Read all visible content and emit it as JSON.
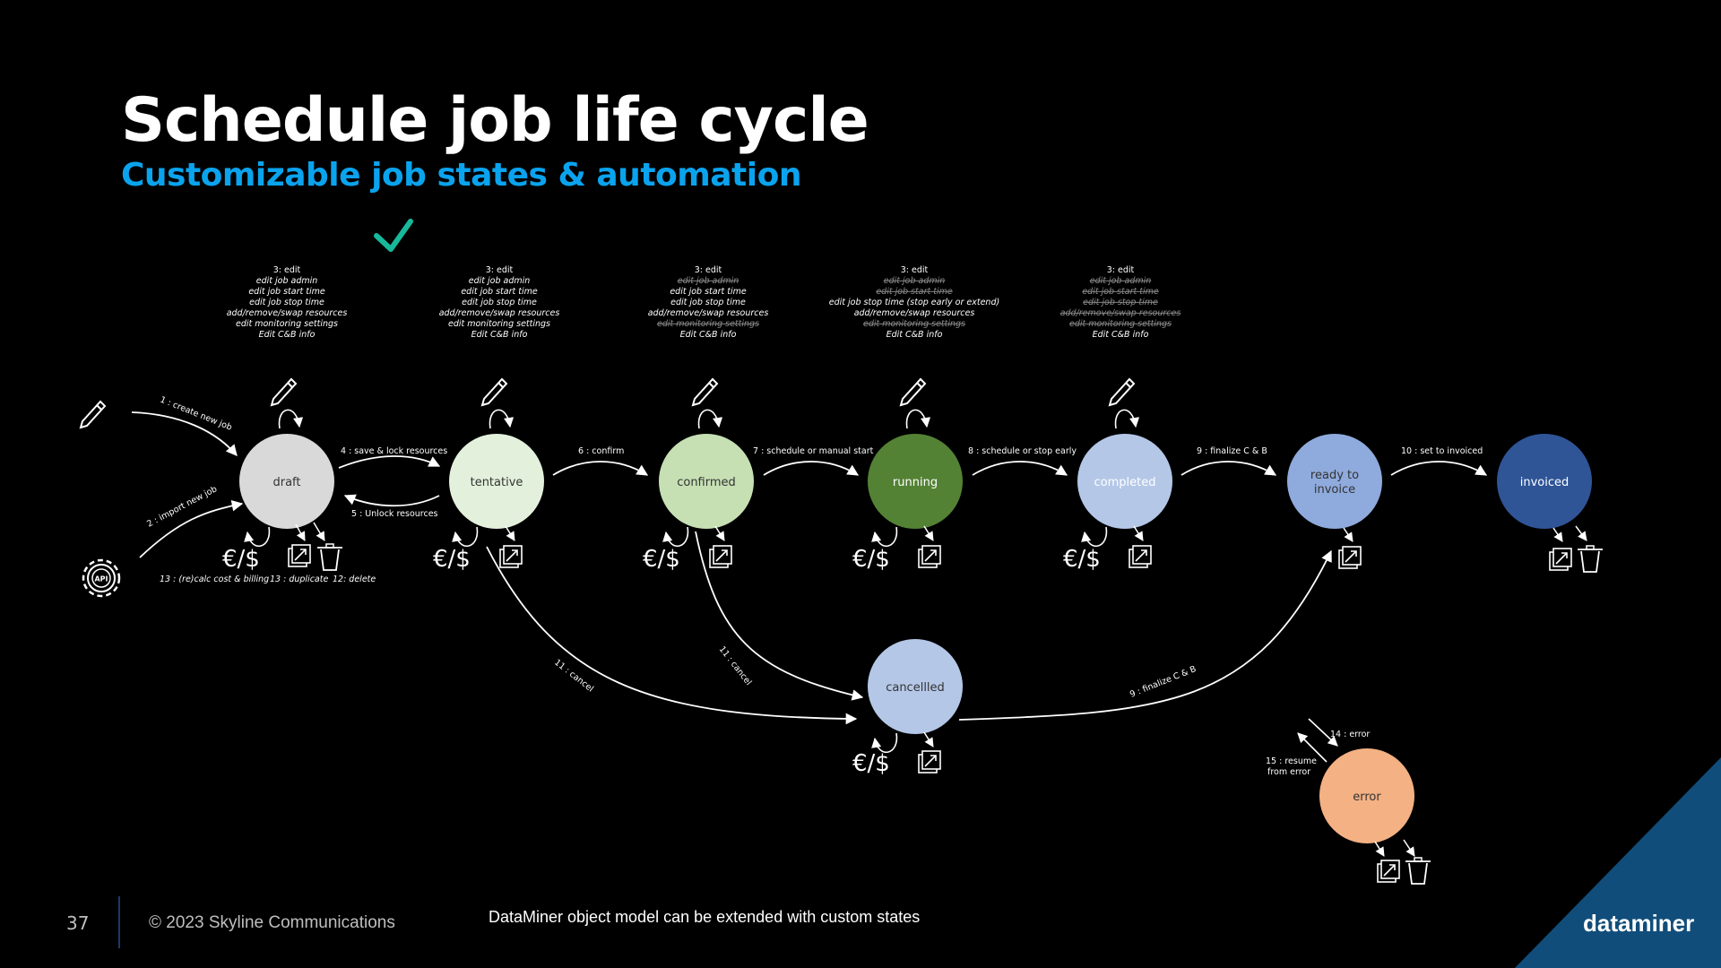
{
  "title": "Schedule job life cycle",
  "subtitle": "Customizable job states & automation",
  "footer": {
    "page_number": "37",
    "copyright": "© 2023 Skyline Communications",
    "note": "DataMiner object model can be extended with custom states",
    "brand": "dataminer"
  },
  "colors": {
    "background": "#000000",
    "title": "#ffffff",
    "subtitle": "#0aa3ee",
    "check": "#18b89a",
    "corner": "#114d7a"
  },
  "icons": [
    "pencil-icon",
    "api-gear-icon",
    "checkmark-icon",
    "currency-icon",
    "duplicate-icon",
    "trash-icon"
  ],
  "currency_label": "€/$",
  "states": {
    "draft": {
      "label": "draft",
      "color": "#d9d9d9",
      "text_color": "#333333"
    },
    "tentative": {
      "label": "tentative",
      "color": "#e3f1dc",
      "text_color": "#333333"
    },
    "confirmed": {
      "label": "confirmed",
      "color": "#c6e0b4",
      "text_color": "#333333"
    },
    "running": {
      "label": "running",
      "color": "#548235",
      "text_color": "#ffffff"
    },
    "completed": {
      "label": "completed",
      "color": "#b4c7e7",
      "text_color": "#ffffff"
    },
    "ready": {
      "label_line1": "ready to",
      "label_line2": "invoice",
      "color": "#8faadc",
      "text_color": "#333333"
    },
    "invoiced": {
      "label": "invoiced",
      "color": "#2f5597",
      "text_color": "#ffffff"
    },
    "cancelled": {
      "label": "cancellled",
      "color": "#b4c7e7",
      "text_color": "#333333"
    },
    "error": {
      "label": "error",
      "color": "#f4b183",
      "text_color": "#333333"
    }
  },
  "captions": {
    "draft": [
      "3:  edit",
      "edit job admin",
      "edit job start time",
      "edit job stop time",
      "add/remove/swap resources",
      "edit monitoring settings",
      "Edit C&B info"
    ],
    "tentative": [
      "3:  edit",
      "edit job admin",
      "edit job start time",
      "edit job stop time",
      "add/remove/swap resources",
      "edit monitoring settings",
      "Edit C&B info"
    ],
    "confirmed": [
      "3:  edit",
      "edit job admin",
      "edit job start time",
      "edit job stop time",
      "add/remove/swap resources",
      "edit monitoring settings",
      "Edit C&B info"
    ],
    "running": [
      "3:  edit",
      "edit job admin",
      "edit job start time",
      "edit job stop time (stop early or extend)",
      "add/remove/swap resources",
      "edit monitoring settings",
      "Edit C&B info"
    ],
    "completed": [
      "3:  edit",
      "edit job admin",
      "edit job start time",
      "edit job stop time",
      "add/remove/swap resources",
      "edit monitoring settings",
      "Edit C&B info"
    ]
  },
  "edges": {
    "create": "1 : create new job",
    "import": "2 : import new job",
    "save_lock": "4 : save & lock resources",
    "unlock": "5 : Unlock resources",
    "confirm": "6 : confirm",
    "schedule_start": "7 : schedule or manual start",
    "schedule_stop": "8 : schedule or stop early",
    "finalize": "9 : finalize C & B",
    "set_invoiced": "10 : set to invoiced",
    "cancel_tentative": "11 : cancel",
    "cancel_confirmed": "11 : cancel",
    "finalize_cancelled": "9 : finalize C & B",
    "error": "14 : error",
    "resume_line1": "15 : resume",
    "resume_line2": "from error",
    "recalc": "13 : (re)calc cost & billing",
    "duplicate": "13 : duplicate",
    "delete": "12: delete"
  }
}
